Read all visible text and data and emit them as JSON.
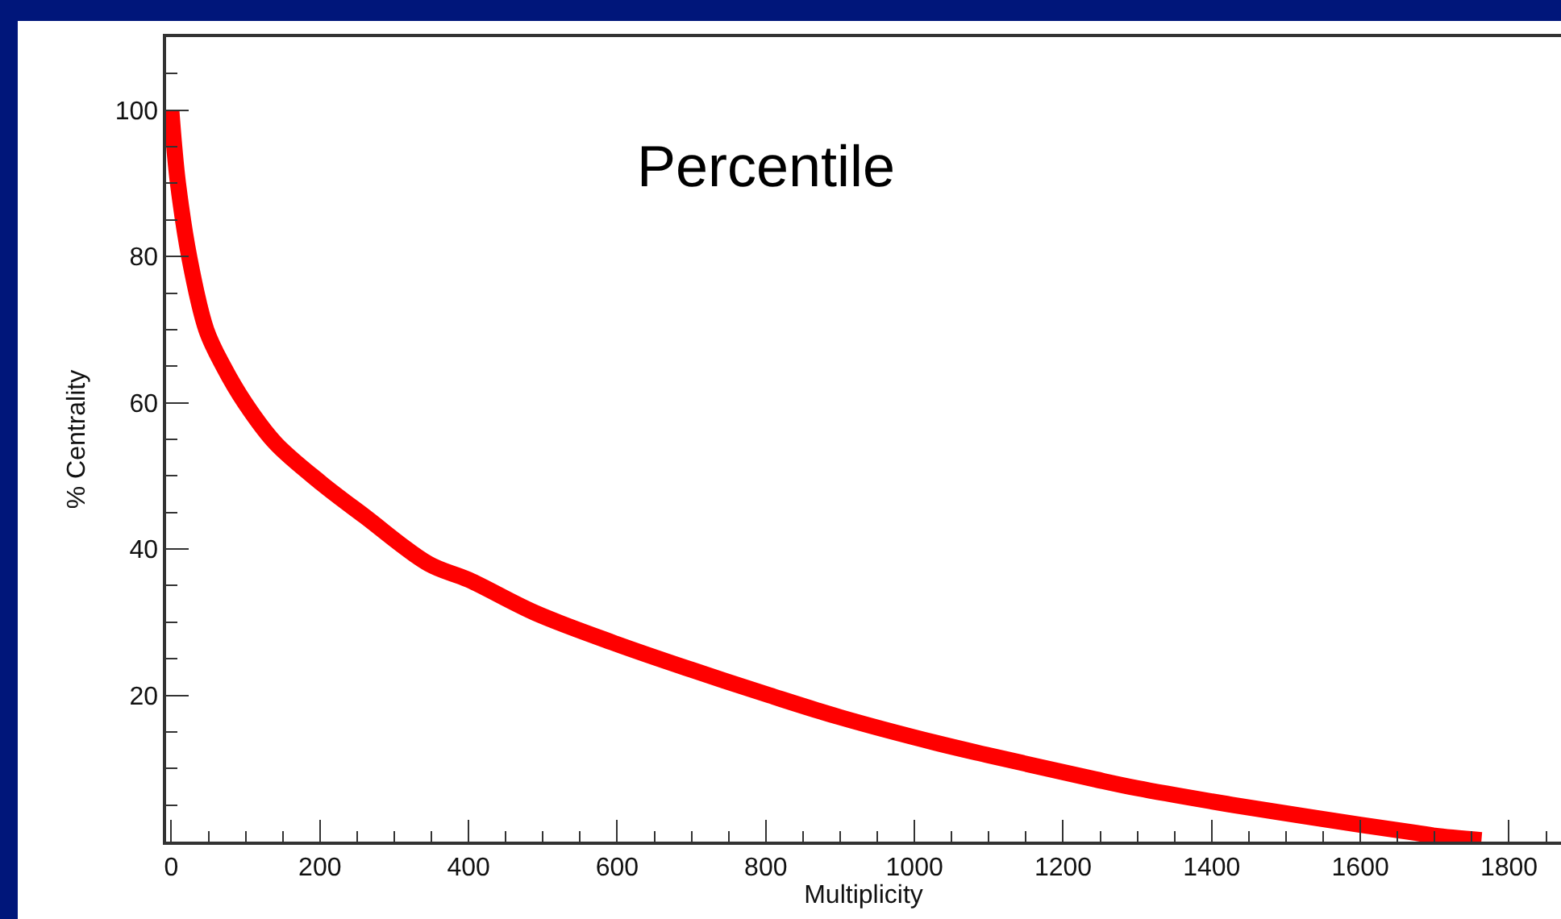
{
  "chart_data": {
    "type": "line",
    "title": "Percentile",
    "xlabel": "Multiplicity",
    "ylabel": "% Centrality",
    "x": [
      0,
      4,
      9,
      24,
      47,
      70,
      99,
      140,
      202,
      260,
      346,
      400,
      489,
      600,
      700,
      805,
      900,
      1029,
      1100,
      1244,
      1300,
      1400,
      1460,
      1600,
      1675,
      1700,
      1763
    ],
    "series": [
      {
        "color": "#ff0000",
        "values": [
          100,
          95,
          90,
          80,
          70,
          65,
          60,
          54.5,
          49,
          44.5,
          38,
          35.8,
          31.3,
          27,
          23.5,
          20,
          17,
          13.5,
          11.8,
          8.5,
          7.3,
          5.5,
          4.5,
          2.3,
          1.2,
          0.8,
          0.2
        ]
      }
    ],
    "xlim": [
      -7,
      1870
    ],
    "ylim": [
      0,
      110
    ],
    "xticks": [
      0,
      200,
      400,
      600,
      800,
      1000,
      1200,
      1400,
      1600,
      1800
    ],
    "yticks": [
      20,
      40,
      60,
      80,
      100
    ],
    "marker": "none",
    "line_style": "solid"
  }
}
